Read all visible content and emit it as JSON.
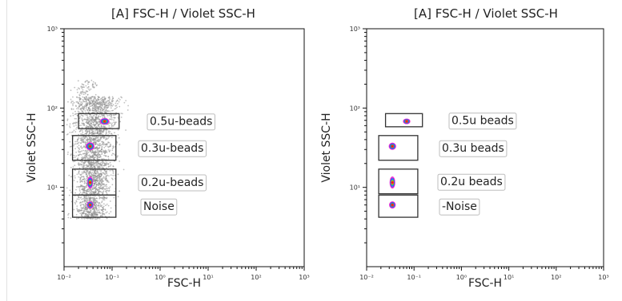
{
  "chart_data": [
    {
      "type": "scatter",
      "title": "[A] FSC-H / Violet SSC-H",
      "xlabel": "FSC-H",
      "ylabel": "Violet SSC-H",
      "x_scale": "log",
      "y_scale": "log",
      "xlim": [
        0.01,
        1000
      ],
      "ylim": [
        1,
        1000
      ],
      "x_ticks": [
        {
          "value": 0.01,
          "label": "10⁻²"
        },
        {
          "value": 0.1,
          "label": "10⁻¹"
        },
        {
          "value": 1,
          "label": "10⁰"
        },
        {
          "value": 10,
          "label": "10¹"
        },
        {
          "value": 100,
          "label": "10²"
        },
        {
          "value": 1000,
          "label": "10³"
        }
      ],
      "y_ticks": [
        {
          "value": 10,
          "label": "10¹"
        },
        {
          "value": 100,
          "label": "10²"
        },
        {
          "value": 1000,
          "label": "10³"
        }
      ],
      "background_events": true,
      "populations": [
        {
          "x": 0.07,
          "y": 68,
          "sx": 0.09,
          "sy": 0.035
        },
        {
          "x": 0.035,
          "y": 33,
          "sx": 0.08,
          "sy": 0.045
        },
        {
          "x": 0.035,
          "y": 11.5,
          "sx": 0.05,
          "sy": 0.07
        },
        {
          "x": 0.035,
          "y": 6,
          "sx": 0.06,
          "sy": 0.04
        }
      ],
      "gates": [
        {
          "label": "0.5u-beads",
          "x": [
            0.02,
            0.14
          ],
          "y": [
            55,
            85
          ]
        },
        {
          "label": "0.3u-beads",
          "x": [
            0.015,
            0.12
          ],
          "y": [
            22,
            45
          ]
        },
        {
          "label": "0.2u-beads",
          "x": [
            0.015,
            0.12
          ],
          "y": [
            8,
            17
          ]
        },
        {
          "label": "Noise",
          "x": [
            0.015,
            0.12
          ],
          "y": [
            4.2,
            8
          ]
        }
      ]
    },
    {
      "type": "scatter",
      "title": "[A] FSC-H / Violet SSC-H",
      "xlabel": "FSC-H",
      "ylabel": "Violet SSC-H",
      "x_scale": "log",
      "y_scale": "log",
      "xlim": [
        0.01,
        1000
      ],
      "ylim": [
        1,
        1000
      ],
      "x_ticks": [
        {
          "value": 0.01,
          "label": "10⁻²"
        },
        {
          "value": 0.1,
          "label": "10⁻¹"
        },
        {
          "value": 1,
          "label": "10⁰"
        },
        {
          "value": 10,
          "label": "10¹"
        },
        {
          "value": 100,
          "label": "10²"
        },
        {
          "value": 1000,
          "label": "10³"
        }
      ],
      "y_ticks": [
        {
          "value": 10,
          "label": "10¹"
        },
        {
          "value": 100,
          "label": "10²"
        },
        {
          "value": 1000,
          "label": "10³"
        }
      ],
      "background_events": false,
      "populations": [
        {
          "x": 0.07,
          "y": 68,
          "sx": 0.07,
          "sy": 0.03
        },
        {
          "x": 0.035,
          "y": 33,
          "sx": 0.07,
          "sy": 0.04
        },
        {
          "x": 0.035,
          "y": 11.5,
          "sx": 0.05,
          "sy": 0.07
        },
        {
          "x": 0.035,
          "y": 6,
          "sx": 0.06,
          "sy": 0.04
        }
      ],
      "gates": [
        {
          "label": "0.5u beads",
          "x": [
            0.025,
            0.15
          ],
          "y": [
            58,
            85
          ]
        },
        {
          "label": "0.3u beads",
          "x": [
            0.018,
            0.12
          ],
          "y": [
            22,
            45
          ]
        },
        {
          "label": "0.2u beads",
          "x": [
            0.018,
            0.12
          ],
          "y": [
            8.3,
            17
          ]
        },
        {
          "label": "-Noise",
          "x": [
            0.018,
            0.12
          ],
          "y": [
            4.2,
            8
          ]
        }
      ]
    }
  ],
  "colors": {
    "contour": [
      "#ff33cc",
      "#8a2be2",
      "#1e78ff",
      "#00c060",
      "#ffcc00",
      "#ff2020"
    ],
    "events": "#8c8c8c",
    "gate": "#333333",
    "label_border": "#bdbdbd"
  }
}
